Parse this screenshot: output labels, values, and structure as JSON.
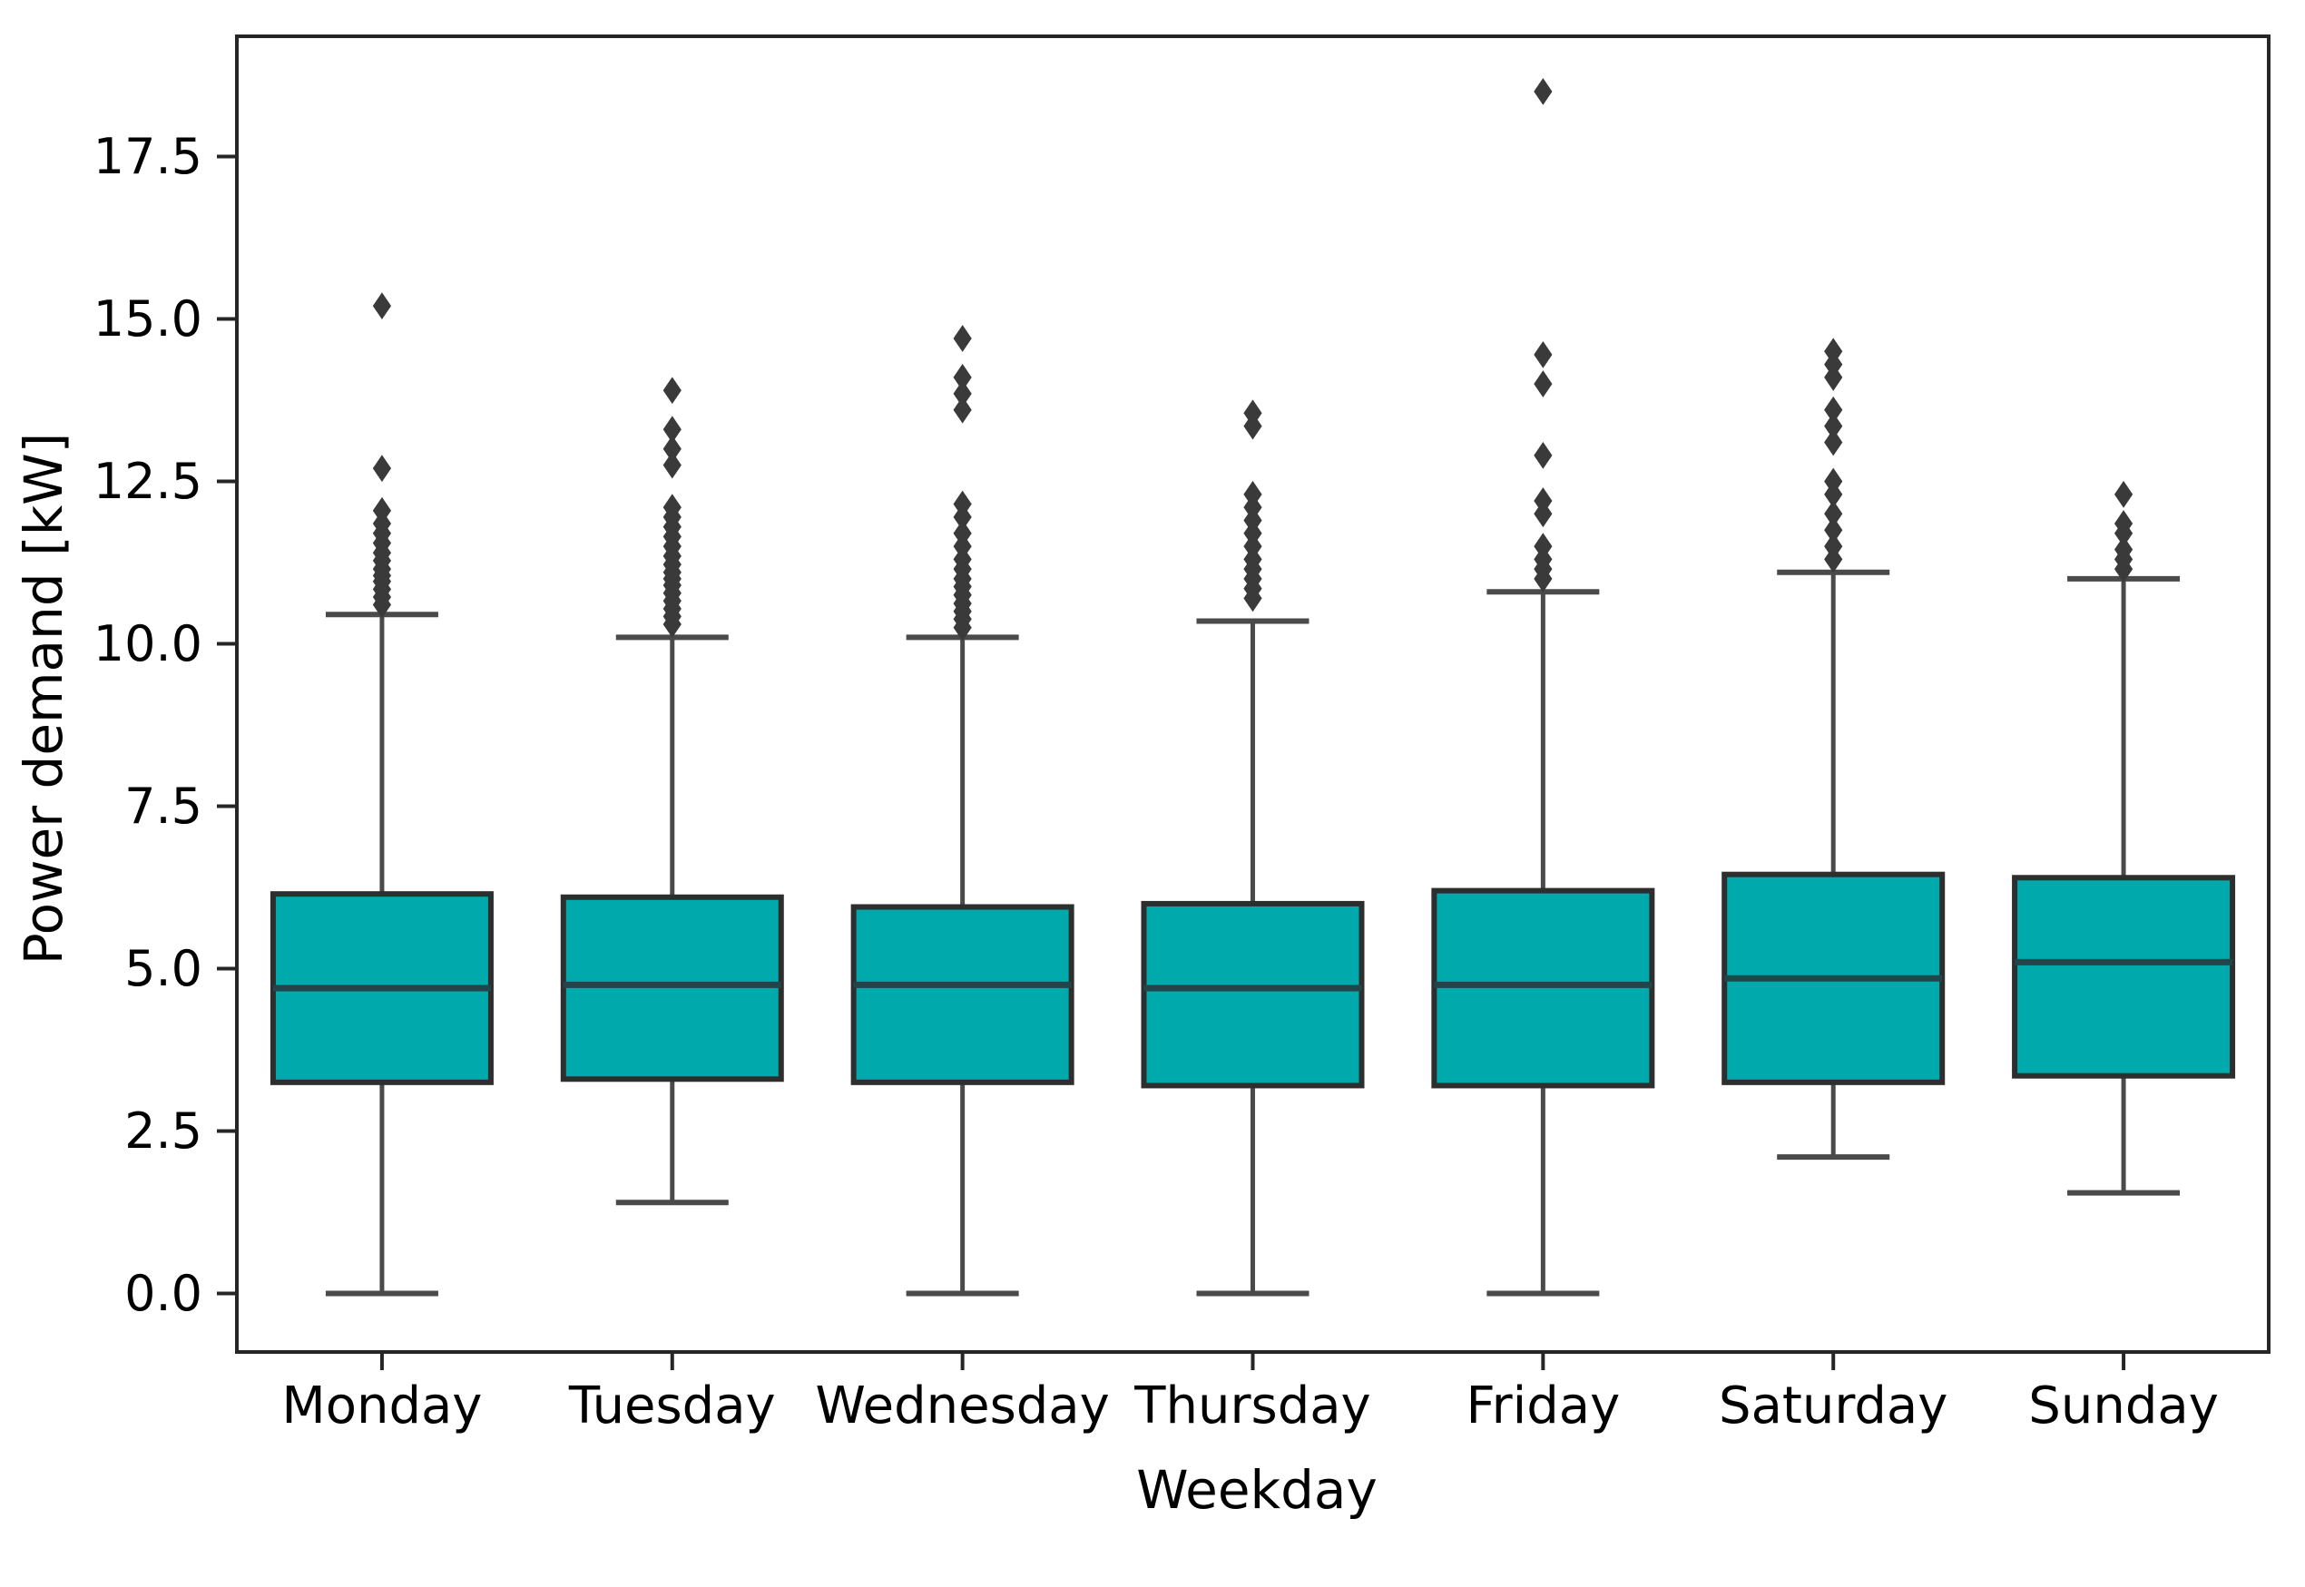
{
  "figure": {
    "xlabel": "Weekday",
    "ylabel": "Power demand [kW]",
    "background": "#ffffff"
  },
  "chart_data": {
    "type": "box",
    "title": "",
    "xlabel": "Weekday",
    "ylabel": "Power demand [kW]",
    "categories": [
      "Monday",
      "Tuesday",
      "Wednesday",
      "Thursday",
      "Friday",
      "Saturday",
      "Sunday"
    ],
    "yticks": [
      0.0,
      2.5,
      5.0,
      7.5,
      10.0,
      12.5,
      15.0,
      17.5
    ],
    "ylim": [
      -0.9,
      19.35
    ],
    "grid": false,
    "legend": null,
    "series": [
      {
        "name": "Monday",
        "whislo": 0.0,
        "q1": 3.25,
        "med": 4.7,
        "q3": 6.15,
        "whishi": 10.45,
        "outliers": [
          10.6,
          10.72,
          10.84,
          10.96,
          11.05,
          11.15,
          11.28,
          11.4,
          11.55,
          11.7,
          11.85,
          12.05,
          12.7,
          15.2
        ]
      },
      {
        "name": "Tuesday",
        "whislo": 1.4,
        "q1": 3.3,
        "med": 4.75,
        "q3": 6.1,
        "whishi": 10.1,
        "outliers": [
          10.3,
          10.42,
          10.54,
          10.66,
          10.78,
          10.9,
          11.0,
          11.1,
          11.22,
          11.35,
          11.5,
          11.65,
          11.8,
          11.95,
          12.1,
          12.75,
          13.0,
          13.3,
          13.9
        ]
      },
      {
        "name": "Wednesday",
        "whislo": 0.0,
        "q1": 3.25,
        "med": 4.75,
        "q3": 5.95,
        "whishi": 10.1,
        "outliers": [
          10.25,
          10.38,
          10.5,
          10.62,
          10.75,
          10.88,
          11.0,
          11.15,
          11.3,
          11.5,
          11.7,
          11.95,
          12.15,
          13.6,
          13.85,
          14.1,
          14.7
        ]
      },
      {
        "name": "Thursday",
        "whislo": 0.0,
        "q1": 3.2,
        "med": 4.7,
        "q3": 6.0,
        "whishi": 10.35,
        "outliers": [
          10.7,
          10.85,
          11.0,
          11.15,
          11.3,
          11.5,
          11.7,
          11.9,
          12.1,
          12.3,
          13.35,
          13.55
        ]
      },
      {
        "name": "Friday",
        "whislo": 0.0,
        "q1": 3.2,
        "med": 4.75,
        "q3": 6.2,
        "whishi": 10.8,
        "outliers": [
          11.0,
          11.15,
          11.3,
          11.5,
          12.0,
          12.2,
          12.9,
          14.0,
          14.45,
          18.5
        ]
      },
      {
        "name": "Saturday",
        "whislo": 2.1,
        "q1": 3.25,
        "med": 4.85,
        "q3": 6.45,
        "whishi": 11.1,
        "outliers": [
          11.3,
          11.5,
          11.75,
          12.0,
          12.3,
          12.5,
          13.1,
          13.35,
          13.6,
          14.1,
          14.3,
          14.5
        ]
      },
      {
        "name": "Sunday",
        "whislo": 1.55,
        "q1": 3.35,
        "med": 5.1,
        "q3": 6.4,
        "whishi": 11.0,
        "outliers": [
          11.15,
          11.3,
          11.45,
          11.7,
          11.85,
          12.3
        ]
      }
    ],
    "style": {
      "box_fill": "#00a9ac",
      "box_edge": "#2e2e2e",
      "median_color": "#22454a",
      "whisker_color": "#4a4a4a",
      "cap_color": "#4a4a4a",
      "outlier_color": "#3a3a3a",
      "axis_color": "#262626",
      "tick_label_color": "#000000"
    }
  }
}
